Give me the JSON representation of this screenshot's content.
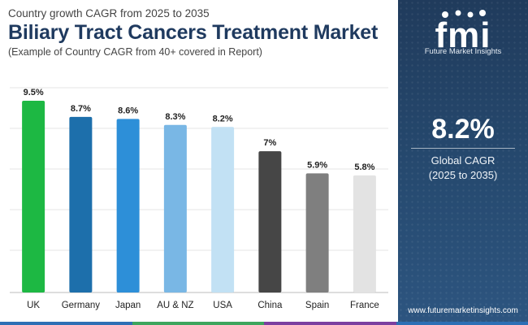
{
  "header": {
    "subtitle": "Country growth CAGR from 2025 to 2035",
    "title": "Biliary Tract Cancers Treatment Market",
    "note": "(Example of Country CAGR from 40+ covered in Report)"
  },
  "chart_data": {
    "type": "bar",
    "categories": [
      "UK",
      "Germany",
      "Japan",
      "AU & NZ",
      "USA",
      "China",
      "Spain",
      "France"
    ],
    "values": [
      9.5,
      8.7,
      8.6,
      8.3,
      8.2,
      7.0,
      5.9,
      5.8
    ],
    "data_labels": [
      "9.5%",
      "8.7%",
      "8.6%",
      "8.3%",
      "8.2%",
      "7%",
      "5.9%",
      "5.8%"
    ],
    "bar_colors": [
      "#1db843",
      "#1d6fab",
      "#2d8fd8",
      "#79b7e5",
      "#c2e1f4",
      "#464646",
      "#7f7f7f",
      "#e3e3e3"
    ],
    "ylim": [
      0,
      9.6
    ],
    "grid": true,
    "title": "",
    "xlabel": "",
    "ylabel": ""
  },
  "panel": {
    "logo_text": "fmi",
    "logo_tagline": "Future Market Insights",
    "stat_value": "8.2%",
    "stat_label": "Global CAGR",
    "stat_period": "(2025 to 2035)",
    "website": "www.futuremarketinsights.com"
  },
  "colors": {
    "title": "#1f3a5f",
    "panel": "#203b5c",
    "strip": [
      "#2d6fb5",
      "#3da55d",
      "#7b3fa0",
      "#2d6fb5"
    ]
  }
}
